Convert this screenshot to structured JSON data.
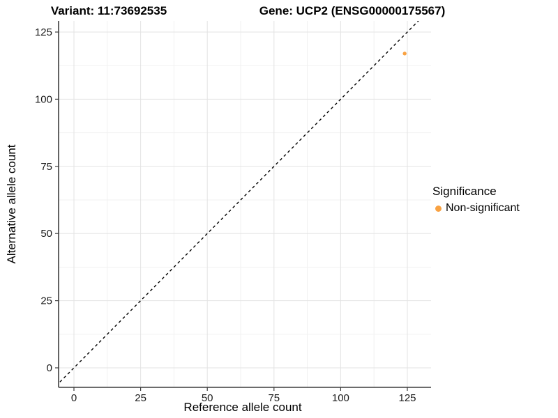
{
  "header": {
    "variant_title": "Variant: 11:73692535",
    "gene_title": "Gene: UCP2 (ENSG00000175567)"
  },
  "chart_data": {
    "type": "scatter",
    "title": "Variant: 11:73692535   Gene: UCP2 (ENSG00000175567)",
    "xlabel": "Reference allele count",
    "ylabel": "Alternative allele count",
    "x_ticks": [
      0,
      25,
      50,
      75,
      100,
      125
    ],
    "y_ticks": [
      0,
      25,
      50,
      75,
      100,
      125
    ],
    "minor_tick_step": 12.5,
    "xlim": [
      -6,
      134
    ],
    "ylim": [
      -7,
      129
    ],
    "grid": "major-and-minor",
    "legend_position": "right",
    "identity_line": {
      "slope": 1,
      "intercept": 0,
      "style": "dashed",
      "color": "#000000"
    },
    "points": [
      {
        "x": 124,
        "y": 117,
        "series": "Non-significant"
      }
    ],
    "legend": {
      "title": "Significance",
      "entries": [
        {
          "label": "Non-significant",
          "color": "#F9A242"
        }
      ]
    },
    "colors": {
      "point": "#F9A242",
      "grid_major": "#E3E3E3",
      "grid_minor": "#F1F1F1",
      "axis_line": "#3c3c3c",
      "tick_label": "#1a1a1a"
    }
  }
}
